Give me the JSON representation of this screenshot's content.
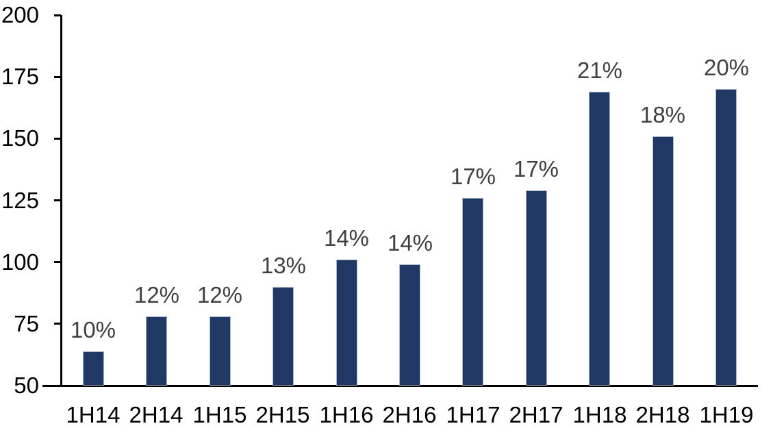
{
  "chart_data": {
    "type": "bar",
    "title": "",
    "categories": [
      "1H14",
      "2H14",
      "1H15",
      "2H15",
      "1H16",
      "2H16",
      "1H17",
      "2H17",
      "1H18",
      "2H18",
      "1H19"
    ],
    "values": [
      64,
      78,
      78,
      90,
      101,
      99,
      126,
      129,
      169,
      151,
      170
    ],
    "bar_labels": [
      "10%",
      "12%",
      "12%",
      "13%",
      "14%",
      "14%",
      "17%",
      "17%",
      "21%",
      "18%",
      "20%"
    ],
    "ylim": [
      50,
      200
    ],
    "yticks": [
      50,
      75,
      100,
      125,
      150,
      175,
      200
    ],
    "grid": false,
    "legend": "none",
    "colors": {
      "bar_fill": "#1F3864",
      "bar_border": "#A7B4CB",
      "data_label": "#404040",
      "axis_text": "#000000",
      "axis_line": "#000000",
      "background": "#FFFFFF"
    }
  }
}
